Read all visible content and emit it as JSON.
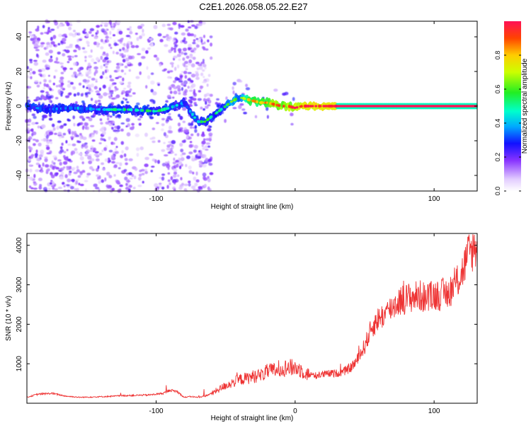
{
  "figure": {
    "title": "C2E1.2026.058.05.22.E27"
  },
  "chart_data": [
    {
      "type": "heatmap",
      "title": "C2E1.2026.058.05.22.E27",
      "xlabel": "Height of straight line (km)",
      "ylabel": "Frequency (Hz)",
      "xlim": [
        -193,
        131
      ],
      "ylim": [
        -49,
        49
      ],
      "x_ticks": [
        -100,
        0,
        100
      ],
      "x_tick_labels": [
        "-100",
        "",
        "100"
      ],
      "y_ticks": [
        -40,
        -20,
        0,
        20,
        40
      ],
      "y_tick_labels": [
        "-40",
        "-20",
        "0",
        "20",
        "40"
      ],
      "colorbar": {
        "label": "Normalized spectral amplitude",
        "range": [
          0,
          1
        ],
        "ticks": [
          0.0,
          0.2,
          0.4,
          0.6,
          0.8
        ],
        "tick_labels": [
          "0.0",
          "0.2",
          "0.4",
          "0.6",
          "0.8"
        ],
        "colormap": "rainbow"
      },
      "ridge": {
        "x": [
          -193,
          -180,
          -160,
          -140,
          -120,
          -100,
          -90,
          -80,
          -70,
          -65,
          -60,
          -55,
          -50,
          -45,
          -40,
          -35,
          -30,
          -25,
          -20,
          -15,
          -10,
          -5,
          0,
          5,
          10,
          20,
          40,
          60,
          80,
          100,
          120,
          131
        ],
        "y": [
          0,
          -2,
          -1,
          -2,
          -2,
          -3,
          -1,
          2,
          -9,
          -9,
          -6,
          -3,
          0,
          3,
          5,
          4,
          3,
          2,
          2,
          1,
          0,
          0,
          -1,
          0,
          0,
          0,
          0,
          0,
          0,
          0,
          0,
          0
        ],
        "amplitude": [
          0.3,
          0.3,
          0.35,
          0.45,
          0.5,
          0.5,
          0.5,
          0.3,
          0.45,
          0.55,
          0.5,
          0.5,
          0.55,
          0.65,
          0.6,
          0.75,
          0.8,
          0.8,
          0.85,
          0.9,
          0.9,
          0.9,
          0.95,
          0.95,
          1.0,
          1.0,
          1.0,
          1.0,
          1.0,
          1.0,
          1.0,
          1.0
        ]
      },
      "scatter_extent": {
        "x": [
          -193,
          35
        ],
        "y": [
          -49,
          49
        ]
      }
    },
    {
      "type": "line",
      "xlabel": "Height of straight line (km)",
      "ylabel": "SNR (10 * v/v)",
      "xlim": [
        -193,
        131
      ],
      "ylim": [
        0,
        4300
      ],
      "x_ticks": [
        -100,
        0,
        100
      ],
      "x_tick_labels": [
        "-100",
        "0",
        "100"
      ],
      "y_ticks": [
        1000,
        2000,
        3000,
        4000
      ],
      "y_tick_labels": [
        "1000",
        "2000",
        "3000",
        "4000"
      ],
      "color": "#ee3333",
      "series": [
        {
          "x": [
            -193,
            -185,
            -175,
            -165,
            -155,
            -145,
            -135,
            -125,
            -115,
            -105,
            -95,
            -90,
            -85,
            -80,
            -75,
            -70,
            -65,
            -60,
            -55,
            -50,
            -45,
            -40,
            -35,
            -30,
            -25,
            -20,
            -15,
            -10,
            -5,
            0,
            5,
            10,
            15,
            20,
            25,
            30,
            35,
            40,
            45,
            50,
            55,
            60,
            65,
            70,
            75,
            80,
            85,
            90,
            95,
            100,
            105,
            110,
            115,
            120,
            125,
            131
          ],
          "y": [
            150,
            230,
            250,
            180,
            150,
            160,
            170,
            190,
            200,
            210,
            250,
            330,
            300,
            150,
            170,
            150,
            180,
            250,
            350,
            450,
            520,
            600,
            630,
            680,
            700,
            800,
            830,
            880,
            900,
            900,
            830,
            720,
            700,
            730,
            750,
            760,
            800,
            900,
            1100,
            1450,
            1900,
            2150,
            2250,
            2450,
            2600,
            2650,
            2700,
            2720,
            2650,
            2750,
            2750,
            2800,
            3000,
            3300,
            3800,
            4000
          ]
        }
      ]
    }
  ]
}
